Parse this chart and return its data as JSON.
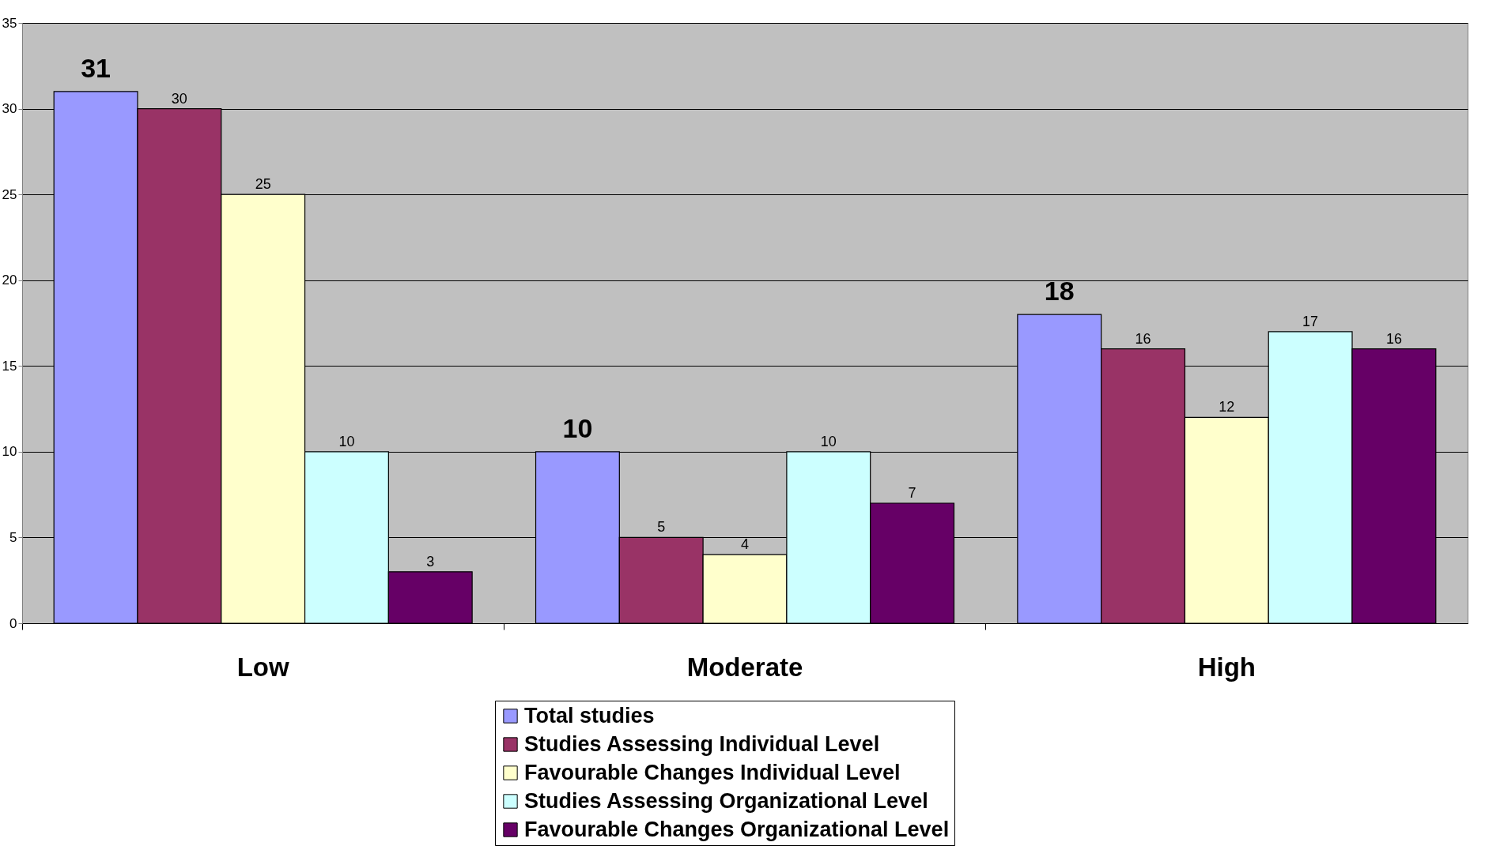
{
  "chart_data": {
    "type": "bar",
    "categories": [
      "Low",
      "Moderate",
      "High"
    ],
    "series": [
      {
        "name": "Total studies",
        "color": "#9999ff",
        "values": [
          31,
          10,
          18
        ]
      },
      {
        "name": "Studies Assessing Individual Level",
        "color": "#993366",
        "values": [
          30,
          5,
          16
        ]
      },
      {
        "name": "Favourable Changes Individual Level",
        "color": "#ffffcc",
        "values": [
          25,
          4,
          12
        ]
      },
      {
        "name": "Studies Assessing Organizational Level",
        "color": "#ccffff",
        "values": [
          10,
          10,
          17
        ]
      },
      {
        "name": "Favourable Changes Organizational Level",
        "color": "#660066",
        "values": [
          3,
          7,
          16
        ]
      }
    ],
    "ylim": [
      0,
      35
    ],
    "yticks": [
      0,
      5,
      10,
      15,
      20,
      25,
      30,
      35
    ],
    "grid": "y",
    "legend": "bottom",
    "data_labels": true
  }
}
